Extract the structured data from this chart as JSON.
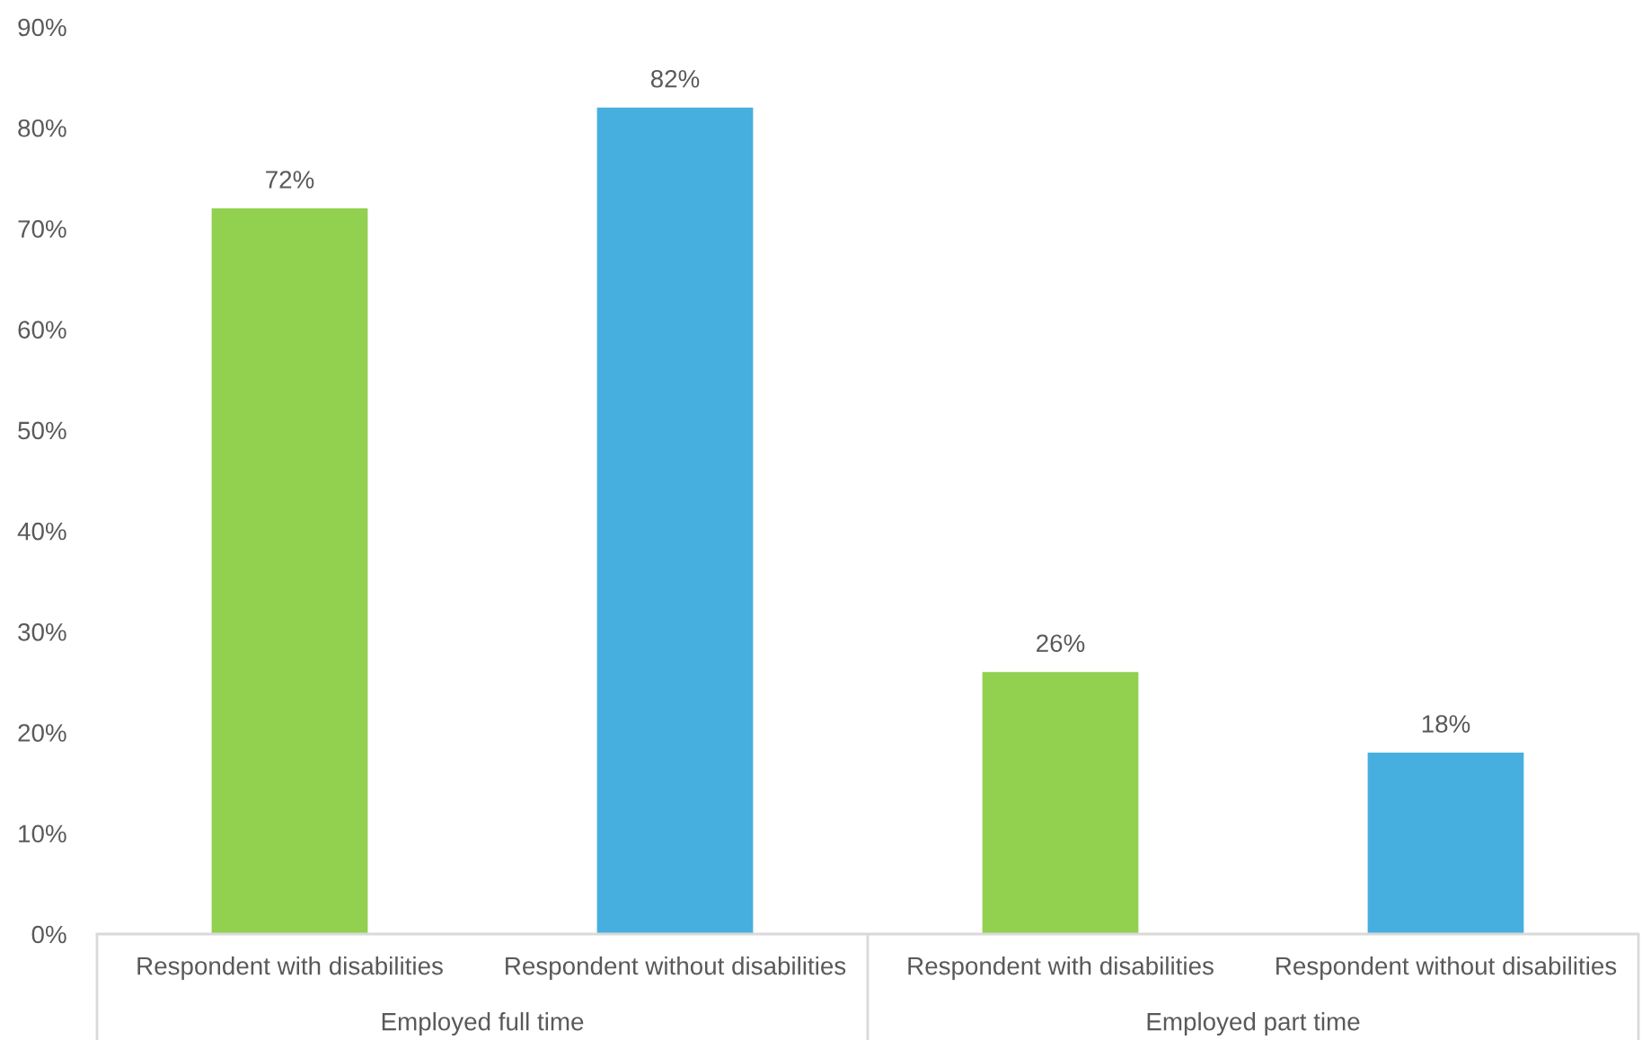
{
  "chart_data": {
    "type": "bar",
    "categories": [
      "Respondent with disabilities",
      "Respondent without disabilities",
      "Respondent with disabilities",
      "Respondent without disabilities"
    ],
    "values": [
      72,
      82,
      26,
      18
    ],
    "colors": [
      "#92d050",
      "#47afdf",
      "#92d050",
      "#47afdf"
    ],
    "value_labels": [
      "72%",
      "82%",
      "26%",
      "18%"
    ],
    "ylim": [
      0,
      90
    ],
    "yticks": [
      {
        "value": 0,
        "label": "0%"
      },
      {
        "value": 10,
        "label": "10%"
      },
      {
        "value": 20,
        "label": "20%"
      },
      {
        "value": 30,
        "label": "30%"
      },
      {
        "value": 40,
        "label": "40%"
      },
      {
        "value": 50,
        "label": "50%"
      },
      {
        "value": 60,
        "label": "60%"
      },
      {
        "value": 70,
        "label": "70%"
      },
      {
        "value": 80,
        "label": "80%"
      },
      {
        "value": 90,
        "label": "90%"
      }
    ],
    "grid": false,
    "annotations": [
      "Employed full time",
      "Employed part time"
    ]
  }
}
